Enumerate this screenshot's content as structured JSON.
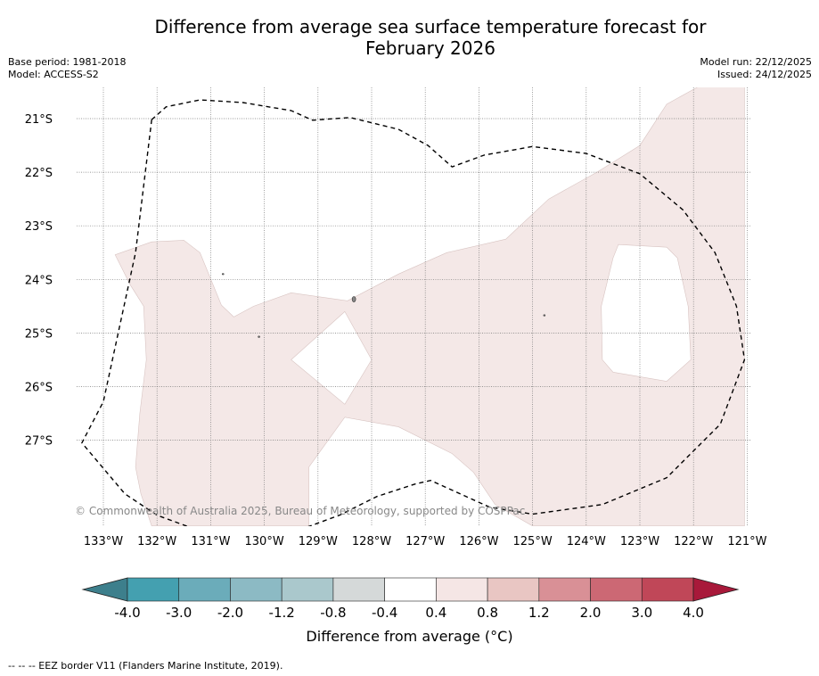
{
  "title": {
    "line1": "Difference from average sea surface temperature forecast for",
    "line2": "February 2026"
  },
  "meta": {
    "base_period": "Base period: 1981-2018",
    "model": "Model: ACCESS-S2",
    "model_run": "Model run: 22/12/2025",
    "issued": "Issued: 24/12/2025"
  },
  "map": {
    "lon_range": [
      -133.4,
      -120.9
    ],
    "lat_range": [
      -28.3,
      -20.4
    ],
    "lat_labels": [
      "21°S",
      "22°S",
      "23°S",
      "24°S",
      "25°S",
      "26°S",
      "27°S"
    ],
    "lat_values": [
      -21,
      -22,
      -23,
      -24,
      -25,
      -26,
      -27
    ],
    "lon_labels": [
      "133°W",
      "132°W",
      "131°W",
      "130°W",
      "129°W",
      "128°W",
      "127°W",
      "126°W",
      "125°W",
      "124°W",
      "123°W",
      "122°W",
      "121°W"
    ],
    "lon_values": [
      -133,
      -132,
      -131,
      -130,
      -129,
      -128,
      -127,
      -126,
      -125,
      -124,
      -123,
      -122,
      -121
    ],
    "anomaly_fill_color": "#f4e8e7",
    "anomaly_range": "0.4 to 0.8",
    "copyright": "© Commonwealth of Australia 2025, Bureau of Meteorology, supported by COSPPac",
    "anomaly_region_outer": [
      [
        -132.78,
        -23.54
      ],
      [
        -132.1,
        -23.3
      ],
      [
        -131.5,
        -23.27
      ],
      [
        -131.2,
        -23.5
      ],
      [
        -130.8,
        -24.48
      ],
      [
        -130.57,
        -24.7
      ],
      [
        -130.2,
        -24.5
      ],
      [
        -129.5,
        -24.25
      ],
      [
        -128.45,
        -24.4
      ],
      [
        -127.5,
        -23.9
      ],
      [
        -126.6,
        -23.5
      ],
      [
        -125.5,
        -23.25
      ],
      [
        -124.7,
        -22.5
      ],
      [
        -123.8,
        -22.0
      ],
      [
        -123.0,
        -21.5
      ],
      [
        -122.5,
        -20.73
      ],
      [
        -121.9,
        -20.4
      ],
      [
        -121.05,
        -20.4
      ],
      [
        -121.05,
        -28.6
      ],
      [
        -125.0,
        -28.6
      ],
      [
        -125.7,
        -28.2
      ],
      [
        -126.1,
        -27.6
      ],
      [
        -126.5,
        -27.25
      ],
      [
        -127.5,
        -26.75
      ],
      [
        -128.5,
        -26.57
      ],
      [
        -129.17,
        -27.5
      ],
      [
        -129.17,
        -28.6
      ],
      [
        -132.1,
        -28.6
      ],
      [
        -132.3,
        -28.0
      ],
      [
        -132.4,
        -27.5
      ],
      [
        -132.32,
        -26.5
      ],
      [
        -132.2,
        -25.5
      ],
      [
        -132.25,
        -24.5
      ],
      [
        -132.5,
        -24.1
      ]
    ],
    "anomaly_hole_diamond": [
      [
        -128.5,
        -24.6
      ],
      [
        -128.0,
        -25.5
      ],
      [
        -128.5,
        -26.33
      ],
      [
        -129.5,
        -25.5
      ]
    ],
    "anomaly_hole_east": [
      [
        -123.4,
        -23.35
      ],
      [
        -122.5,
        -23.4
      ],
      [
        -122.3,
        -23.6
      ],
      [
        -122.1,
        -24.5
      ],
      [
        -122.05,
        -25.5
      ],
      [
        -122.5,
        -25.9
      ],
      [
        -123.5,
        -25.73
      ],
      [
        -123.7,
        -25.5
      ],
      [
        -123.72,
        -24.5
      ],
      [
        -123.5,
        -23.6
      ]
    ],
    "eez_border": [
      [
        -132.1,
        -21.02
      ],
      [
        -131.83,
        -20.78
      ],
      [
        -131.2,
        -20.65
      ],
      [
        -130.4,
        -20.7
      ],
      [
        -129.5,
        -20.85
      ],
      [
        -129.1,
        -21.03
      ],
      [
        -128.4,
        -20.98
      ],
      [
        -127.5,
        -21.2
      ],
      [
        -126.95,
        -21.5
      ],
      [
        -126.5,
        -21.9
      ],
      [
        -125.9,
        -21.68
      ],
      [
        -125.0,
        -21.52
      ],
      [
        -124.0,
        -21.65
      ],
      [
        -123.0,
        -22.03
      ],
      [
        -122.2,
        -22.7
      ],
      [
        -121.6,
        -23.5
      ],
      [
        -121.2,
        -24.5
      ],
      [
        -121.05,
        -25.5
      ],
      [
        -121.5,
        -26.7
      ],
      [
        -122.5,
        -27.7
      ],
      [
        -123.7,
        -28.2
      ],
      [
        -125.0,
        -28.38
      ],
      [
        -125.8,
        -28.25
      ],
      [
        -126.9,
        -27.75
      ],
      [
        -127.2,
        -27.82
      ],
      [
        -127.9,
        -28.05
      ],
      [
        -128.6,
        -28.4
      ],
      [
        -129.5,
        -28.73
      ],
      [
        -130.4,
        -28.85
      ],
      [
        -131.1,
        -28.73
      ],
      [
        -132.0,
        -28.4
      ],
      [
        -132.6,
        -28.0
      ],
      [
        -133.4,
        -27.05
      ],
      [
        -133.0,
        -26.28
      ],
      [
        -132.4,
        -23.5
      ],
      [
        -132.1,
        -21.02
      ]
    ],
    "islands": [
      {
        "lon": -128.33,
        "lat": -24.37
      },
      {
        "lon": -130.77,
        "lat": -23.9
      },
      {
        "lon": -130.1,
        "lat": -25.07
      },
      {
        "lon": -124.78,
        "lat": -24.67
      }
    ]
  },
  "colorbar": {
    "label": "Difference from average (°C)",
    "tick_labels": [
      "-4.0",
      "-3.0",
      "-2.0",
      "-1.2",
      "-0.8",
      "-0.4",
      "0.4",
      "0.8",
      "1.2",
      "2.0",
      "3.0",
      "4.0"
    ],
    "colors": [
      "#44a0b0",
      "#6bacba",
      "#8cbac4",
      "#aac8cc",
      "#d5d9d9",
      "#ffffff",
      "#f5e6e5",
      "#e9c6c3",
      "#d99096",
      "#cc6874",
      "#c04758"
    ],
    "under_color": "#3d7f8c",
    "over_color": "#a8193a"
  },
  "footnote": "--  --  -- EEZ border V11 (Flanders Marine Institute, 2019)."
}
